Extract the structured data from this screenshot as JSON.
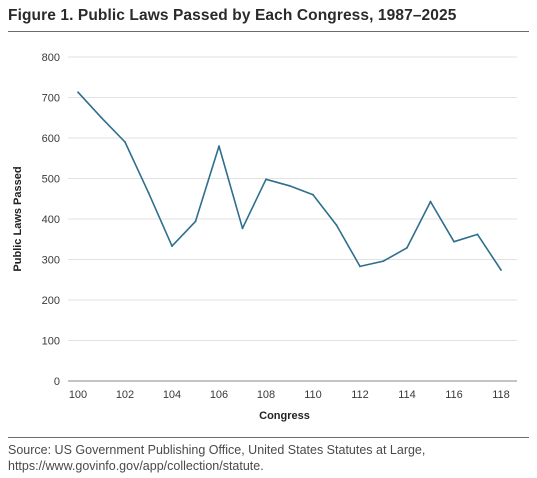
{
  "figure": {
    "title": "Figure 1. Public Laws Passed by Each Congress, 1987–2025",
    "source": "Source: US Government Publishing Office, United States Statutes at Large, https://www.govinfo.gov/app/collection/statute."
  },
  "chart_data": {
    "type": "line",
    "title": "Figure 1. Public Laws Passed by Each Congress, 1987–2025",
    "xlabel": "Congress",
    "ylabel": "Public Laws Passed",
    "xlim": [
      100,
      118
    ],
    "ylim": [
      0,
      800
    ],
    "x_ticks": [
      100,
      102,
      104,
      106,
      108,
      110,
      112,
      114,
      116,
      118
    ],
    "y_ticks": [
      0,
      100,
      200,
      300,
      400,
      500,
      600,
      700,
      800
    ],
    "grid": true,
    "line_color": "#2e6f8e",
    "series": [
      {
        "x": [
          100,
          101,
          102,
          103,
          104,
          105,
          106,
          107,
          108,
          109,
          110,
          111,
          112,
          113,
          114,
          115,
          116,
          117,
          118
        ],
        "values": [
          713,
          650,
          590,
          465,
          333,
          394,
          580,
          377,
          498,
          482,
          460,
          385,
          283,
          296,
          329,
          443,
          344,
          362,
          274
        ]
      }
    ]
  }
}
